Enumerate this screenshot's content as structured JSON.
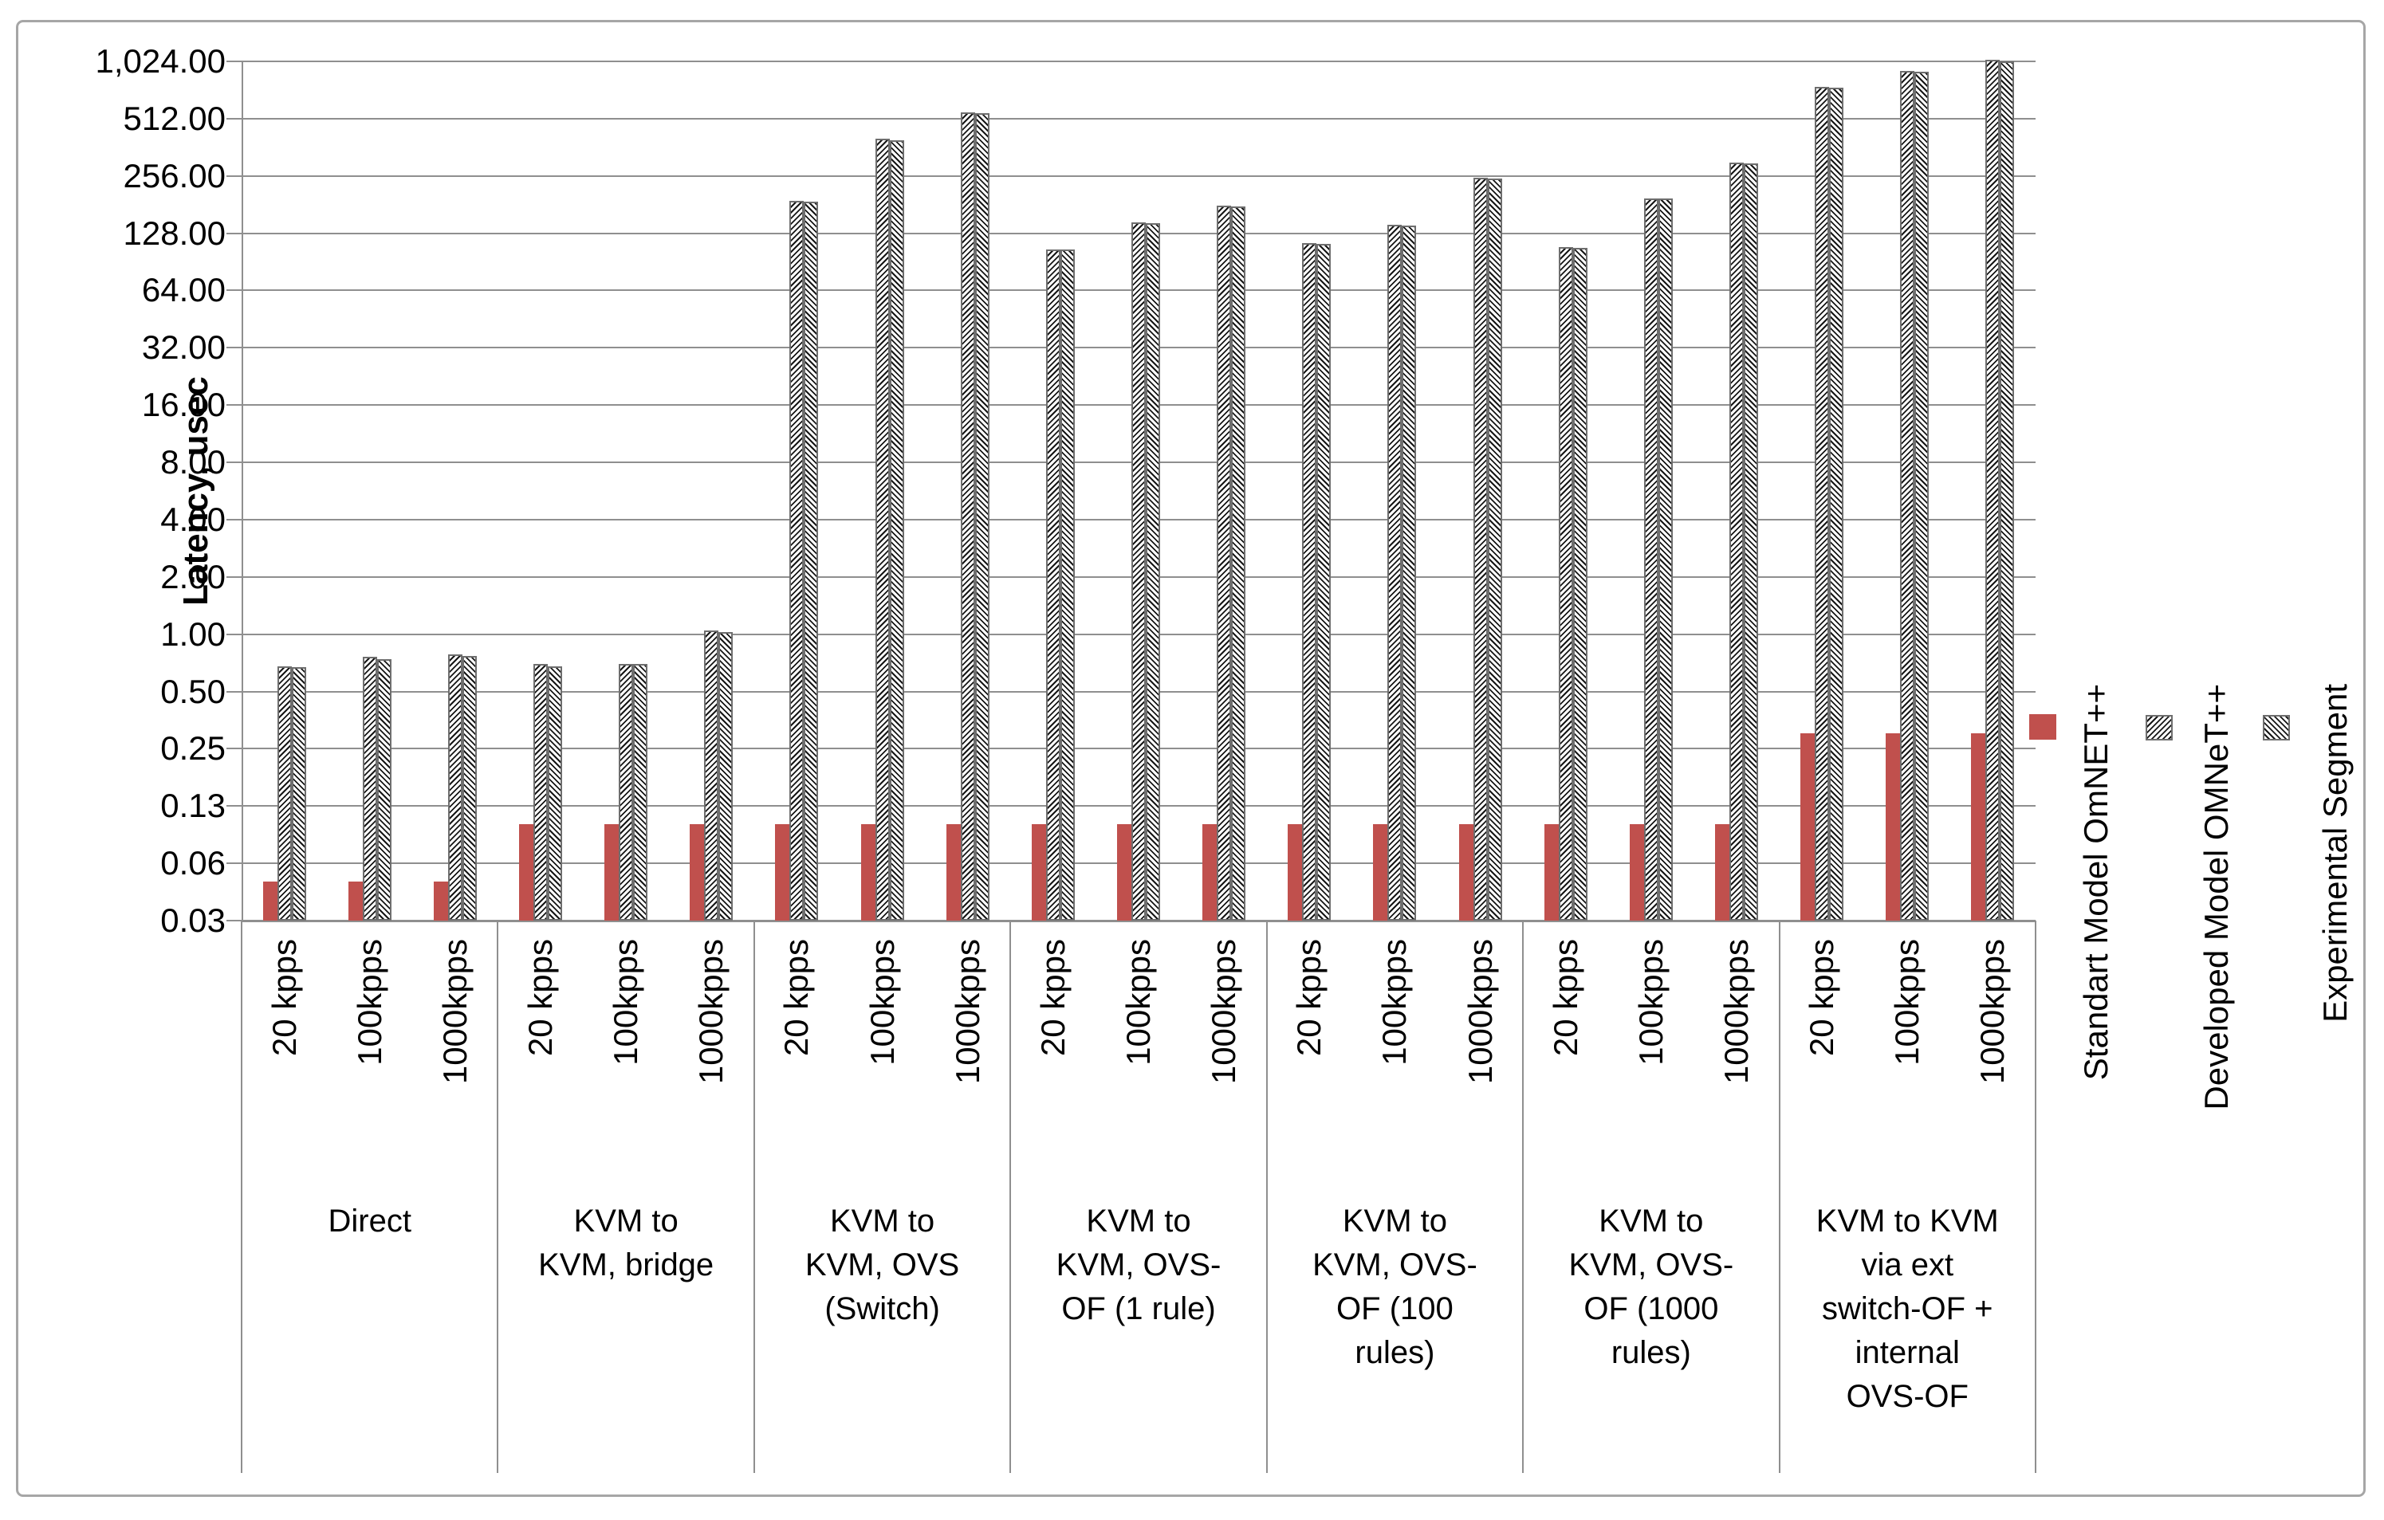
{
  "chart_data": {
    "type": "bar",
    "title": "",
    "y_axis": {
      "label": "Latency, usec",
      "scale": "log2",
      "tick_labels": [
        "1,024.00",
        "512.00",
        "256.00",
        "128.00",
        "64.00",
        "32.00",
        "16.00",
        "8.00",
        "4.00",
        "2.00",
        "1.00",
        "0.50",
        "0.25",
        "0.13",
        "0.06",
        "0.03"
      ],
      "bottom_value": 0.03125,
      "top_value": 1024
    },
    "x_axis": {
      "subcategories": [
        "20 kpps",
        "100kpps",
        "1000kpps"
      ]
    },
    "legend": {
      "position": "right-rotated",
      "entries": [
        {
          "name": "Standart Model OmNET++",
          "swatch": "solid-red"
        },
        {
          "name": "Developed Model OMNeT++",
          "swatch": "hatch-up"
        },
        {
          "name": "Experimental Segment",
          "swatch": "hatch-down"
        }
      ]
    },
    "colors": {
      "standart_series": "#c0504d",
      "hatch_line": "#161616",
      "grid": "#8f8f8f"
    },
    "grid": "on",
    "groups": [
      {
        "label_lines": [
          "Direct"
        ],
        "series": {
          "standart": [
            0.05,
            0.05,
            0.05
          ],
          "developed": [
            0.68,
            0.76,
            0.78
          ],
          "experimental": [
            0.67,
            0.74,
            0.77
          ]
        }
      },
      {
        "label_lines": [
          "KVM to",
          "KVM, bridge"
        ],
        "series": {
          "standart": [
            0.1,
            0.1,
            0.1
          ],
          "developed": [
            0.7,
            0.7,
            1.05
          ],
          "experimental": [
            0.68,
            0.7,
            1.03
          ]
        }
      },
      {
        "label_lines": [
          "KVM to",
          "KVM, OVS",
          "(Switch)"
        ],
        "series": {
          "standart": [
            0.1,
            0.1,
            0.1
          ],
          "developed": [
            190,
            400,
            550
          ],
          "experimental": [
            188,
            396,
            548
          ]
        }
      },
      {
        "label_lines": [
          "KVM to",
          "KVM, OVS-",
          "OF (1 rule)"
        ],
        "series": {
          "standart": [
            0.1,
            0.1,
            0.1
          ],
          "developed": [
            105,
            146,
            178
          ],
          "experimental": [
            105,
            145,
            177
          ]
        }
      },
      {
        "label_lines": [
          "KVM to",
          "KVM, OVS-",
          "OF (100",
          "rules)"
        ],
        "series": {
          "standart": [
            0.1,
            0.1,
            0.1
          ],
          "developed": [
            114,
            142,
            250
          ],
          "experimental": [
            113,
            141,
            249
          ]
        }
      },
      {
        "label_lines": [
          "KVM to",
          "KVM, OVS-",
          "OF (1000",
          "rules)"
        ],
        "series": {
          "standart": [
            0.1,
            0.1,
            0.1
          ],
          "developed": [
            108,
            195,
            300
          ],
          "experimental": [
            107,
            194,
            299
          ]
        }
      },
      {
        "label_lines": [
          "KVM to KVM",
          "via ext",
          "switch-OF +",
          "internal",
          "OVS-OF"
        ],
        "series": {
          "standart": [
            0.3,
            0.3,
            0.3
          ],
          "developed": [
            750,
            910,
            1040
          ],
          "experimental": [
            745,
            905,
            1020
          ]
        }
      }
    ]
  }
}
